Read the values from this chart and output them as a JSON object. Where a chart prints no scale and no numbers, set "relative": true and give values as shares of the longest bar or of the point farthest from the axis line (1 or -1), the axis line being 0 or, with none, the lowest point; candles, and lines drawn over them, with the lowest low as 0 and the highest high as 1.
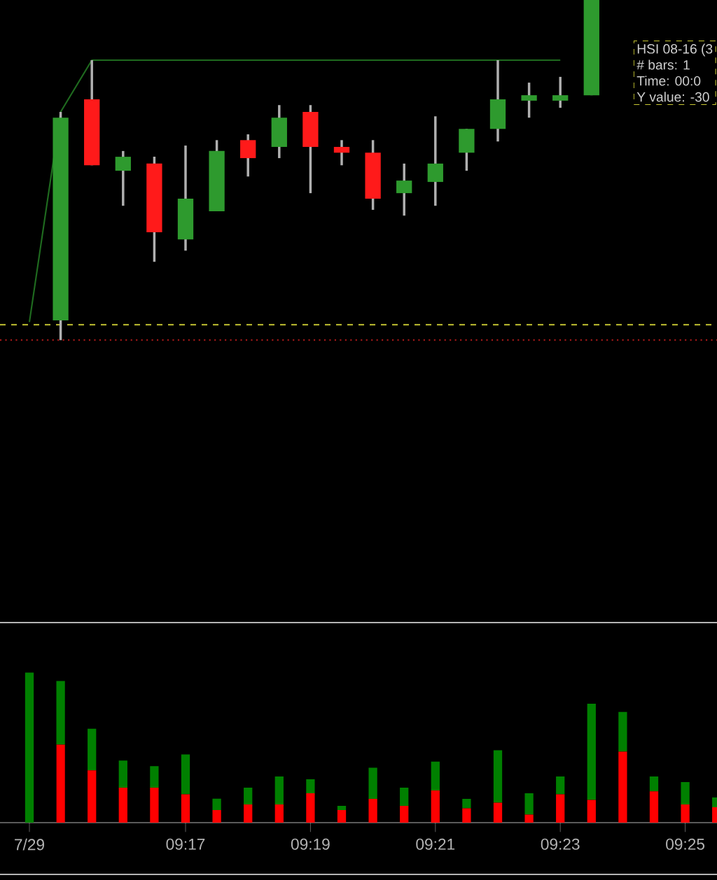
{
  "chart_data": [
    {
      "type": "candlestick",
      "relative": true,
      "tick_labels": false,
      "categories": [
        null,
        null,
        null,
        null,
        null,
        null,
        null,
        null,
        null,
        null,
        null,
        null,
        null,
        null,
        null,
        null,
        null,
        null,
        null,
        null,
        null,
        null,
        null
      ],
      "ohlc": [
        null,
        [
          0.058,
          0.671,
          0,
          0.654
        ],
        [
          0.708,
          0.823,
          0.514,
          0.514
        ],
        [
          0.498,
          0.556,
          0.395,
          0.539
        ],
        [
          0.519,
          0.539,
          0.23,
          0.317
        ],
        [
          0.296,
          0.572,
          0.263,
          0.416
        ],
        [
          0.379,
          0.588,
          0.379,
          0.556
        ],
        [
          0.588,
          0.605,
          0.481,
          0.535
        ],
        [
          0.568,
          0.691,
          0.535,
          0.654
        ],
        [
          0.671,
          0.691,
          0.432,
          0.568
        ],
        [
          0.568,
          0.588,
          0.514,
          0.551
        ],
        [
          0.551,
          0.588,
          0.383,
          0.416
        ],
        [
          0.432,
          0.519,
          0.366,
          0.469
        ],
        [
          0.465,
          0.658,
          0.395,
          0.519
        ],
        [
          0.551,
          0.621,
          0.498,
          0.621
        ],
        [
          0.621,
          0.823,
          0.584,
          0.708
        ],
        [
          0.704,
          0.757,
          0.654,
          0.72
        ],
        [
          0.704,
          0.774,
          0.683,
          0.72
        ],
        [
          0.72,
          1,
          0.72,
          1
        ],
        null,
        null,
        null,
        null
      ],
      "colors": [
        null,
        "#2e9a2e",
        "#ff1a1a",
        "#2e9a2e",
        "#ff1a1a",
        "#2e9a2e",
        "#2e9a2e",
        "#ff1a1a",
        "#2e9a2e",
        "#ff1a1a",
        "#ff1a1a",
        "#ff1a1a",
        "#2e9a2e",
        "#2e9a2e",
        "#2e9a2e",
        "#2e9a2e",
        "#2e9a2e",
        "#2e9a2e",
        "#2e9a2e",
        null,
        null,
        null,
        null
      ],
      "series": [
        {
          "type": "line",
          "color": "#1f6b1f",
          "values": [
            0.053,
            0.671,
            0.823,
            0.823,
            0.823,
            0.823,
            0.823,
            0.823,
            0.823,
            0.823,
            0.823,
            0.823,
            0.823,
            0.823,
            0.823,
            0.823,
            0.823,
            0.823,
            null,
            null,
            null,
            null,
            null
          ]
        }
      ],
      "ref_lines": [
        {
          "axis": "y",
          "value": 0.045,
          "color": "#c8c832",
          "line_style": "dashed"
        },
        {
          "axis": "y",
          "value": 0,
          "color": "#a01818",
          "line_style": "dotted"
        }
      ],
      "annotations": [
        "HSI 08-16 (3",
        "# bars:   1",
        "Time:     00:0",
        "Y value: -30"
      ]
    },
    {
      "type": "bar",
      "stacked": true,
      "relative": true,
      "tick_labels": "x",
      "categories": [
        "7/29",
        null,
        null,
        null,
        null,
        "09:17",
        null,
        null,
        null,
        "09:19",
        null,
        null,
        null,
        "09:21",
        null,
        null,
        null,
        "09:23",
        null,
        null,
        null,
        "09:25",
        null
      ],
      "series": [
        {
          "color": "#ff0000",
          "values": [
            0,
            0.519,
            0.348,
            0.233,
            0.233,
            0.189,
            0.084,
            0.121,
            0.121,
            0.196,
            0.084,
            0.158,
            0.112,
            0.214,
            0.096,
            0.133,
            0.053,
            0.189,
            0.152,
            0.473,
            0.208,
            0.121,
            0.103
          ]
        },
        {
          "color": "#008000",
          "values": [
            1,
            0.425,
            0.277,
            0.18,
            0.143,
            0.265,
            0.075,
            0.112,
            0.186,
            0.093,
            0.028,
            0.208,
            0.121,
            0.193,
            0.062,
            0.349,
            0.143,
            0.118,
            0.64,
            0.264,
            0.1,
            0.149,
            0.065
          ]
        }
      ]
    }
  ]
}
